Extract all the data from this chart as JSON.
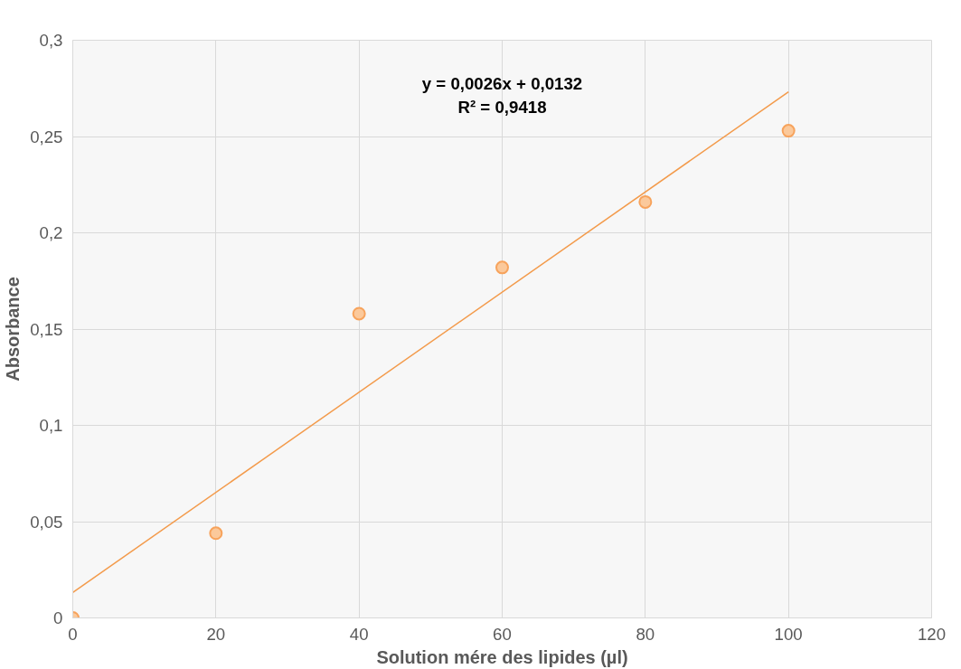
{
  "chart_data": {
    "type": "scatter",
    "xlabel": "Solution mére des lipides (µl)",
    "ylabel": "Absorbance",
    "x": [
      0,
      20,
      40,
      60,
      80,
      100
    ],
    "series": [
      {
        "color": "#f7a35c",
        "values": [
          0,
          0.044,
          0.158,
          0.182,
          0.216,
          0.253
        ]
      },
      {
        "type": "line",
        "marker": "none",
        "color": "#f39a4a",
        "x": [
          0,
          100
        ],
        "values": [
          0.0132,
          0.2732
        ]
      }
    ],
    "xlim": [
      0,
      120
    ],
    "xticks": [
      0,
      20,
      40,
      60,
      80,
      100,
      120
    ],
    "ylim": [
      0,
      0.3
    ],
    "yticks": [
      0,
      {
        "value": 0.05,
        "label": "0,05"
      },
      {
        "value": 0.1,
        "label": "0,1"
      },
      {
        "value": 0.15,
        "label": "0,15"
      },
      {
        "value": 0.2,
        "label": "0,2"
      },
      {
        "value": 0.25,
        "label": "0,25"
      },
      {
        "value": 0.3,
        "label": "0,3"
      }
    ],
    "grid": true,
    "marker": "circle",
    "annotations": [
      "y = 0,0026x + 0,0132",
      "R² = 0,9418"
    ]
  }
}
